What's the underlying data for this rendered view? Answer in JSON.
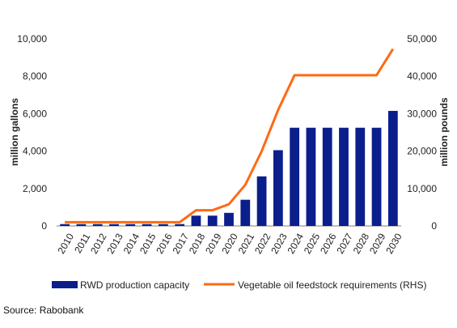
{
  "chart_data": {
    "type": "bar",
    "categories": [
      "2010",
      "2011",
      "2012",
      "2013",
      "2014",
      "2015",
      "2016",
      "2017",
      "2018",
      "2019",
      "2020",
      "2021",
      "2022",
      "2023",
      "2024",
      "2025",
      "2026",
      "2027",
      "2028",
      "2029",
      "2030"
    ],
    "series": [
      {
        "name": "RWD production capacity",
        "type": "bar",
        "axis": "left",
        "color": "#0a1e8c",
        "values": [
          100,
          100,
          100,
          100,
          100,
          100,
          100,
          100,
          550,
          550,
          700,
          1400,
          2650,
          4050,
          5250,
          5250,
          5250,
          5250,
          5250,
          5250,
          6150
        ]
      },
      {
        "name": "Vegetable oil feedstock requirements (RHS)",
        "type": "line",
        "axis": "right",
        "color": "#ff6a13",
        "values": [
          1000,
          1000,
          1000,
          1000,
          1000,
          1000,
          1000,
          1000,
          4200,
          4200,
          5800,
          11000,
          20000,
          31000,
          40300,
          40300,
          40300,
          40300,
          40300,
          40300,
          47300
        ]
      }
    ],
    "ylabel": "million gallons",
    "ylabel_right": "million pounds",
    "ylim": [
      0,
      10000
    ],
    "ylim_right": [
      0,
      50000
    ],
    "yticks": [
      "0",
      "2,000",
      "4,000",
      "6,000",
      "8,000",
      "10,000"
    ],
    "yticks_right": [
      "0",
      "10,000",
      "20,000",
      "30,000",
      "40,000",
      "50,000"
    ],
    "grid": false,
    "legend": "bottom"
  },
  "source_text": "Source: Rabobank"
}
